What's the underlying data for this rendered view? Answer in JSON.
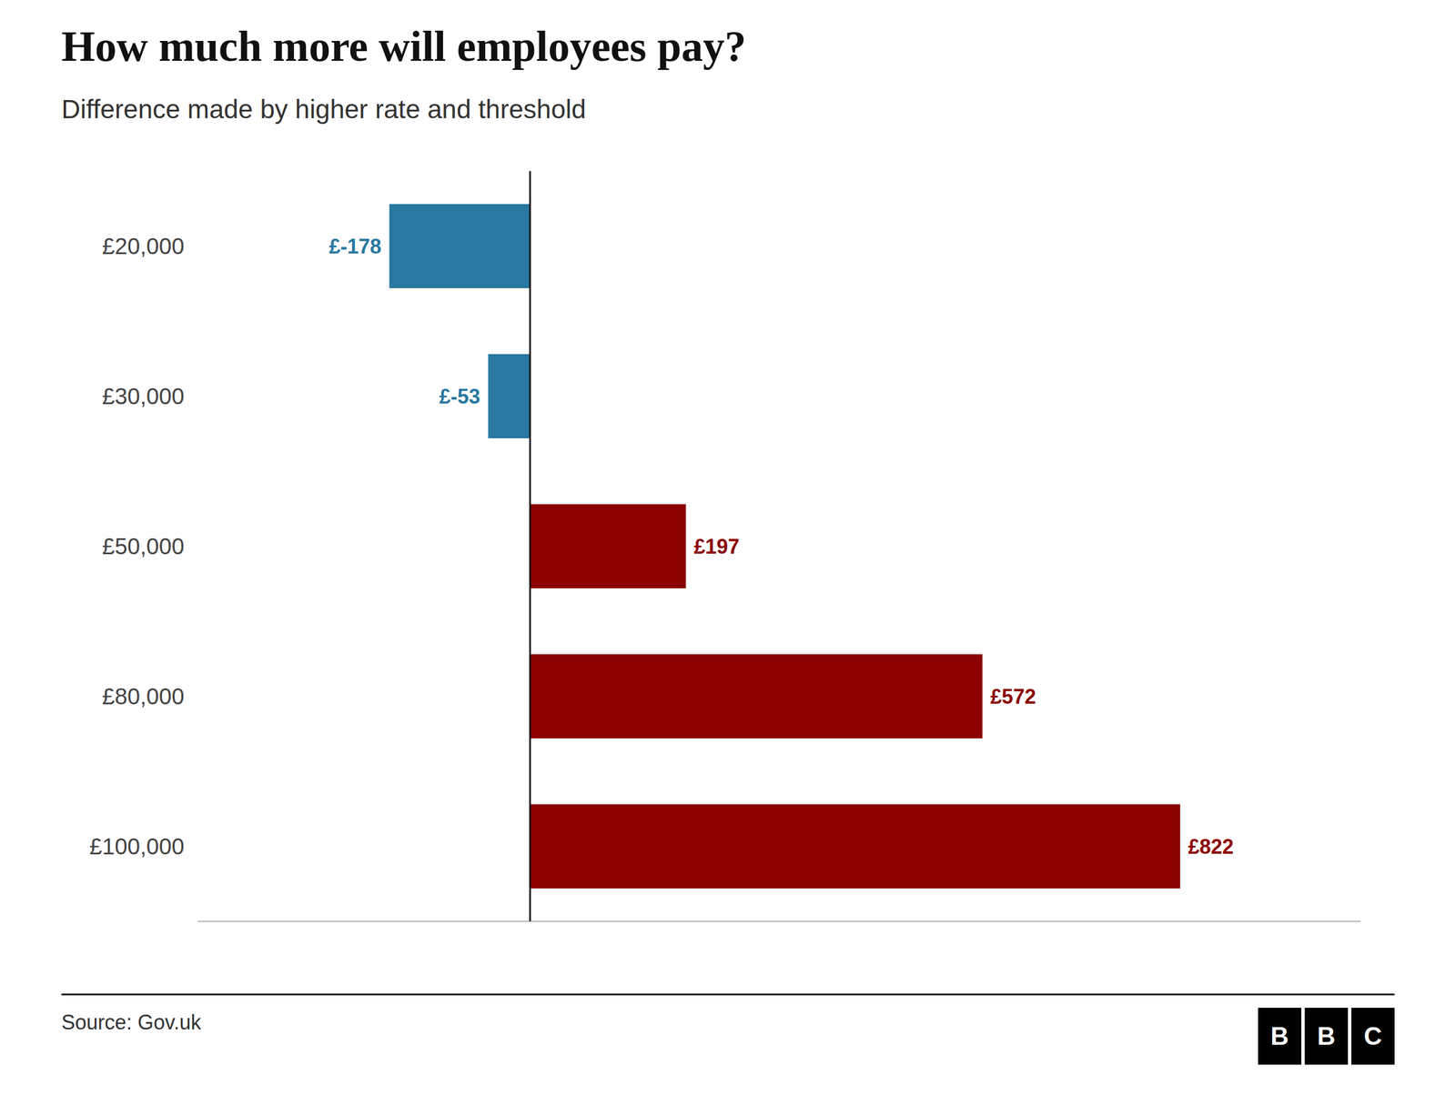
{
  "chart_data": {
    "type": "bar",
    "orientation": "horizontal",
    "title": "How much more will employees pay?",
    "subtitle": "Difference made by higher rate and threshold",
    "categories": [
      "£20,000",
      "£30,000",
      "£50,000",
      "£80,000",
      "£100,000"
    ],
    "values": [
      -178,
      -53,
      197,
      572,
      822
    ],
    "value_labels": [
      "£-178",
      "£-53",
      "£197",
      "£572",
      "£822"
    ],
    "colors": [
      "#2878a0",
      "#2878a0",
      "#8b0000",
      "#8b0000",
      "#8b0000"
    ],
    "xlim": [
      -420,
      1050
    ],
    "tick_labels": "y",
    "data_labels": true,
    "grid": false,
    "source": "Source: Gov.uk",
    "logo": "BBC"
  }
}
